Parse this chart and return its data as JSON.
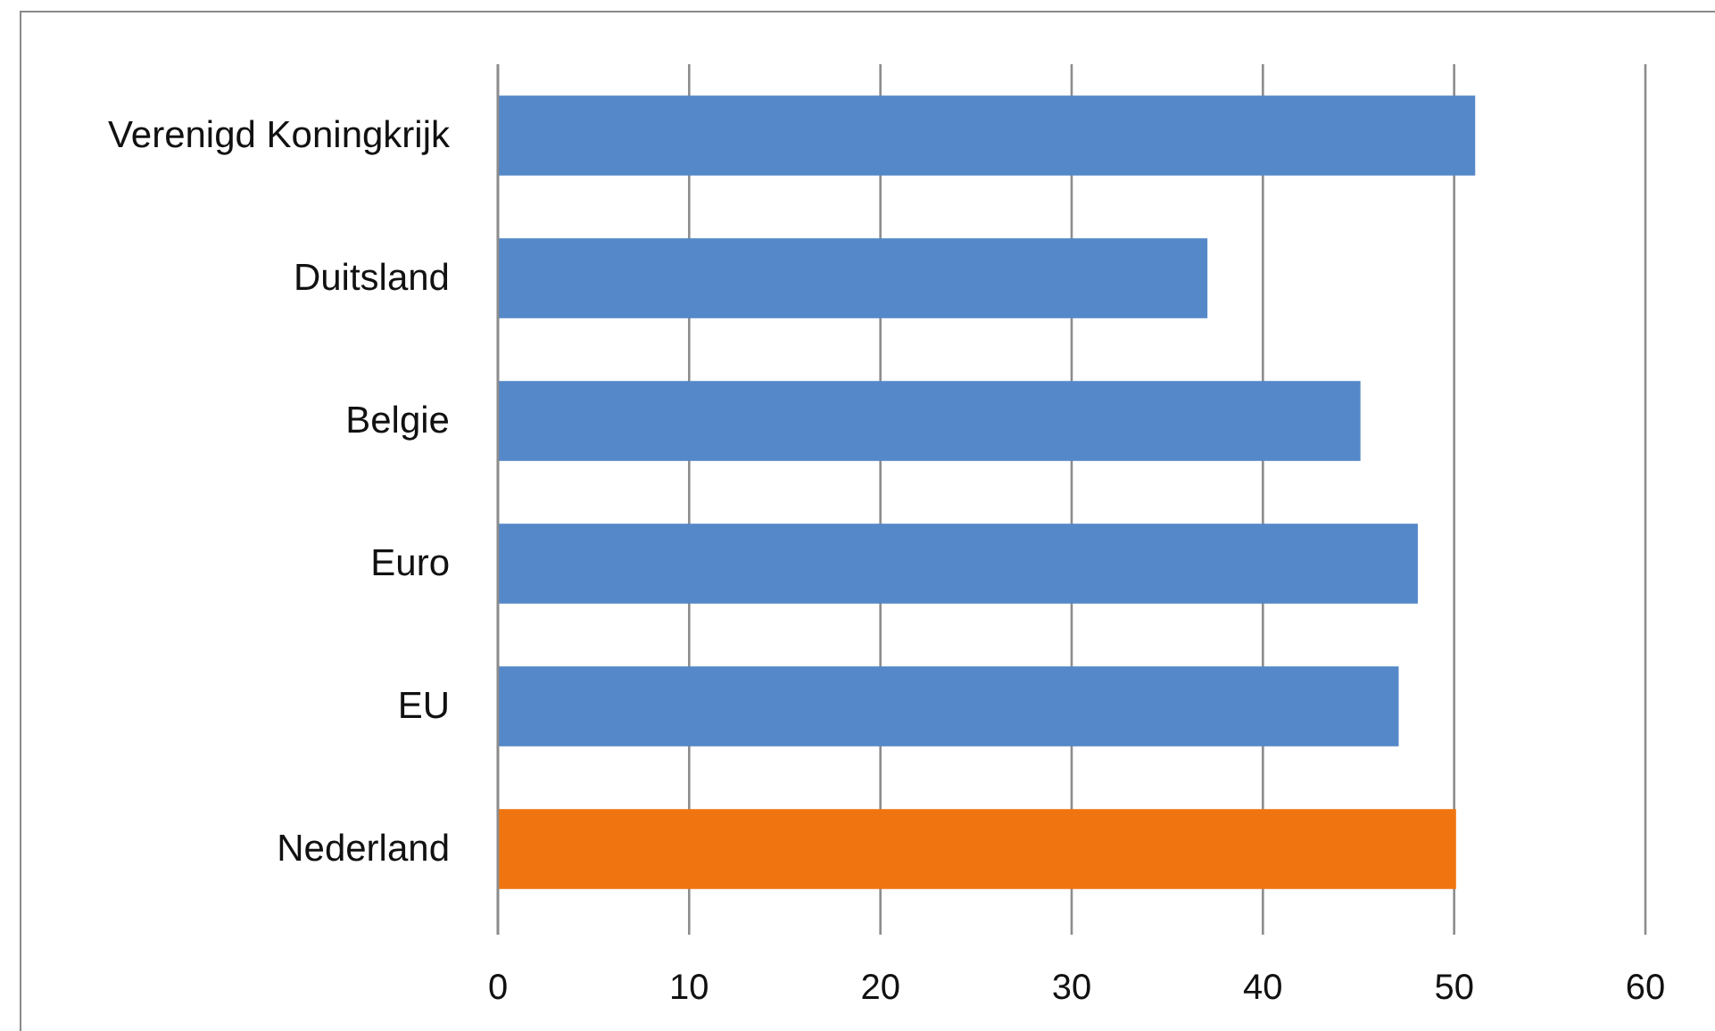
{
  "chart_data": {
    "type": "bar",
    "orientation": "horizontal",
    "categories": [
      "Verenigd Koningkrijk",
      "Duitsland",
      "Belgie",
      "Euro",
      "EU",
      "Nederland"
    ],
    "values": [
      51.1,
      37.1,
      45.1,
      48.1,
      47.1,
      50.1
    ],
    "colors": [
      "#5588c8",
      "#5588c8",
      "#5588c8",
      "#5588c8",
      "#5588c8",
      "#f07510"
    ],
    "xlim": [
      0,
      60
    ],
    "xticks": [
      0,
      10,
      20,
      30,
      40,
      50,
      60
    ],
    "grid": "x"
  }
}
